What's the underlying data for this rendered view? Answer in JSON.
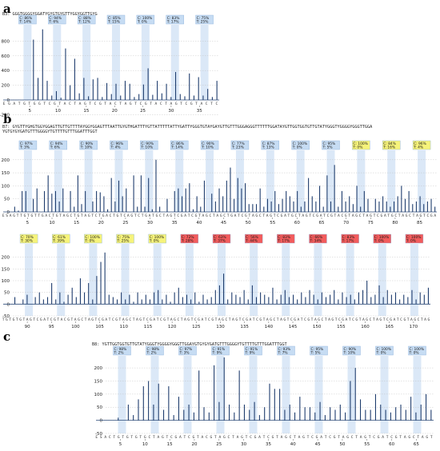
{
  "letters": {
    "a": "a",
    "b": "b",
    "c": "c"
  },
  "chart_data": [
    {
      "type": "bar",
      "panel": "a",
      "header": "B3: GGGTGGGGYGGATYGYGTGYGTTYGGYGGTTGYG",
      "ylim": [
        0,
        1000
      ],
      "yticks": [
        "800",
        "600",
        "400",
        "200",
        "0",
        "-200"
      ],
      "ytick_values": [
        800,
        600,
        400,
        200,
        0,
        -200
      ],
      "xticks": [
        "5",
        "10",
        "15",
        "20",
        "25",
        "30",
        "35"
      ],
      "bases": "EGATGTGGTCGTACTAGTCGTACTAGTCGTACTAGTCGTACTC",
      "cpg_sites": [
        6,
        9,
        15,
        18,
        21,
        24,
        27,
        30,
        33
      ],
      "badges": [
        {
          "c": "C: 86%",
          "t": "T: 14%"
        },
        {
          "c": "C: 94%",
          "t": "T: 6%"
        },
        {
          "c": "C: 88%",
          "t": "T: 12%"
        },
        {
          "c": "C: 85%",
          "t": "T: 15%"
        },
        {
          "c": "C: 100%",
          "t": "T: 0%"
        },
        {
          "c": "C: 83%",
          "t": "T: 17%"
        },
        {
          "c": "C: 75%",
          "t": "T: 25%"
        }
      ],
      "values": [
        0,
        0,
        0,
        0,
        820,
        300,
        960,
        260,
        60,
        120,
        30,
        700,
        200,
        560,
        90,
        300,
        50,
        280,
        300,
        40,
        230,
        80,
        220,
        60,
        260,
        220,
        40,
        80,
        210,
        430,
        70,
        260,
        90,
        220,
        40,
        380,
        80,
        50,
        360,
        60,
        310,
        60,
        150,
        40,
        260
      ]
    },
    {
      "type": "bar",
      "panel": "b",
      "header": "B7: GYGTTYGHGTGGYGGAGTTGTTGTTTTAYGGYGGAGTTTAATTGYGTHGATTTYGTTATTTTTATTYGATTYGGGTGTAYGAYGTTGTTTGGGAGGGTTTTTTGGATAYGTTGGTGGTGTTGTATYGGGTYGGGGYGGGTTGGA YGTGYGYGATGTTTGGGGYTGTTTTGTTTGGATTTGGT",
      "header_line2": "YGTGYGYGATGTTTGGGGYTGTTTTGTTTGGATTTGGT",
      "rows": [
        {
          "ylim": [
            0,
            230
          ],
          "yticks": [
            "200",
            "150",
            "100",
            "50",
            "0"
          ],
          "ytick_values": [
            200,
            150,
            100,
            50,
            0
          ],
          "xticks": [
            "5",
            "10",
            "15",
            "20",
            "25",
            "30",
            "35",
            "40",
            "45",
            "50",
            "55",
            "60",
            "65",
            "70",
            "75",
            "80",
            "85"
          ],
          "bases": "ESAGTTGTGTTGACTGTAGCTGTAGTCTGACTGTCAGTCTGATGCTAGTCGATCGTAGCTAGCTGATCGTAGCTAGTCGATGCTAGTCGATCGTACGTAGCTAGTCGATGCTAGCTAGTCGA",
          "badges": [
            {
              "c": "C: 97%",
              "t": "T: 3%",
              "color": "blue"
            },
            {
              "c": "C: 94%",
              "t": "T: 6%",
              "color": "blue"
            },
            {
              "c": "C: 90%",
              "t": "T: 10%",
              "color": "blue"
            },
            {
              "c": "C: 96%",
              "t": "T: 4%",
              "color": "blue"
            },
            {
              "c": "C: 90%",
              "t": "T: 10%",
              "color": "blue"
            },
            {
              "c": "C: 86%",
              "t": "T: 14%",
              "color": "blue"
            },
            {
              "c": "C: 90%",
              "t": "T: 10%",
              "color": "blue"
            },
            {
              "c": "C: 77%",
              "t": "T: 23%",
              "color": "blue"
            },
            {
              "c": "C: 87%",
              "t": "T: 13%",
              "color": "blue"
            },
            {
              "c": "C: 100%",
              "t": "T: 0%",
              "color": "blue"
            },
            {
              "c": "C: 95%",
              "t": "T: 5%",
              "color": "blue"
            },
            {
              "c": "C: 100%",
              "t": "T: 0%",
              "color": "yellow"
            },
            {
              "c": "C: 84%",
              "t": "T: 16%",
              "color": "yellow"
            },
            {
              "c": "C: 96%",
              "t": "T: 4%",
              "color": "yellow"
            }
          ],
          "values": [
            20,
            5,
            80,
            80,
            0,
            50,
            90,
            0,
            80,
            140,
            70,
            80,
            40,
            90,
            0,
            80,
            20,
            140,
            30,
            80,
            0,
            40,
            80,
            75,
            60,
            10,
            130,
            40,
            120,
            60,
            90,
            0,
            140,
            20,
            140,
            20,
            130,
            10,
            200,
            20,
            0,
            50,
            0,
            80,
            90,
            60,
            90,
            110,
            10,
            60,
            20,
            120,
            0,
            70,
            40,
            90,
            60,
            120,
            170,
            50,
            130,
            90,
            110,
            30,
            30,
            30,
            90,
            20,
            50,
            40,
            80,
            30,
            50,
            80,
            60,
            40,
            80,
            20,
            40,
            130,
            60,
            40,
            100,
            20,
            140,
            40,
            180,
            20,
            80,
            40,
            60,
            30,
            100,
            20,
            80,
            50,
            0,
            50,
            40,
            60,
            40,
            20,
            40,
            60,
            100,
            50,
            80,
            30,
            40,
            60,
            30,
            40,
            50,
            20
          ]
        },
        {
          "ylim": [
            -50,
            250
          ],
          "yticks": [
            "200",
            "150",
            "100",
            "50",
            "0",
            "-50"
          ],
          "ytick_values": [
            200,
            150,
            100,
            50,
            0,
            -50
          ],
          "xticks": [
            "90",
            "95",
            "100",
            "105",
            "110",
            "115",
            "120",
            "125",
            "130",
            "135",
            "140",
            "145",
            "150",
            "155",
            "160",
            "165",
            "170"
          ],
          "bases": "TGTGTGTAGTCGATCGTACGTAGCTAGTCGATCGTAGCTAGTCGATCGTAGCTAGTCGATCGTAGCTAGTCGATCGTAGCTAGTCGATCGTAGCTAGTCGATCGTAGCTAGTCGATCGTAGCTAG",
          "badges": [
            {
              "c": "C: 70%",
              "t": "T: 30%",
              "color": "yellow"
            },
            {
              "c": "C: 61%",
              "t": "T: 39%",
              "color": "yellow"
            },
            {
              "c": "C: 100%",
              "t": "T: 0%",
              "color": "yellow"
            },
            {
              "c": "C: 75%",
              "t": "T: 25%",
              "color": "yellow"
            },
            {
              "c": "C: 100%",
              "t": "T: 0%",
              "color": "yellow"
            },
            {
              "c": "C: 72%",
              "t": "T: 28%",
              "color": "red"
            },
            {
              "c": "C: 63%",
              "t": "T: 37%",
              "color": "red"
            },
            {
              "c": "C: 56%",
              "t": "T: 44%",
              "color": "red"
            },
            {
              "c": "C: 83%",
              "t": "T: 17%",
              "color": "red"
            },
            {
              "c": "C: 66%",
              "t": "T: 34%",
              "color": "red"
            },
            {
              "c": "C: 83%",
              "t": "T: 17%",
              "color": "red"
            },
            {
              "c": "C: 100%",
              "t": "T: 0%",
              "color": "red"
            },
            {
              "c": "C: 100%",
              "t": "T: 0%",
              "color": "red"
            }
          ],
          "values": [
            30,
            0,
            20,
            40,
            0,
            30,
            50,
            20,
            30,
            90,
            20,
            50,
            10,
            40,
            70,
            30,
            110,
            50,
            90,
            20,
            120,
            180,
            220,
            40,
            30,
            20,
            50,
            20,
            40,
            10,
            50,
            20,
            40,
            20,
            50,
            60,
            20,
            40,
            10,
            50,
            70,
            30,
            40,
            20,
            50,
            10,
            40,
            20,
            30,
            60,
            80,
            130,
            20,
            50,
            40,
            30,
            60,
            20,
            80,
            30,
            50,
            40,
            30,
            70,
            20,
            40,
            60,
            30,
            40,
            20,
            50,
            30,
            60,
            40,
            20,
            50,
            30,
            40,
            60,
            20,
            50,
            30,
            40,
            20,
            50,
            60,
            100,
            30,
            40,
            80,
            30,
            60,
            40,
            50,
            20,
            40,
            30,
            60,
            20,
            50,
            40,
            70
          ]
        }
      ]
    },
    {
      "type": "bar",
      "panel": "c",
      "header": "B8: YGTTGGTGGTGTTGTATYGGGTYGGGGYGGGTTGGAYGTGYGYGATGTTTGGGGYTGTTTTGTTTGGATTTGGT",
      "ylim": [
        -50,
        240
      ],
      "yticks": [
        "200",
        "150",
        "100",
        "50",
        "0",
        "-50"
      ],
      "ytick_values": [
        200,
        150,
        100,
        50,
        0,
        -50
      ],
      "xticks": [
        "5",
        "10",
        "15",
        "20",
        "25",
        "30",
        "35",
        "40",
        "45",
        "50",
        "55",
        "60",
        "65"
      ],
      "bases": "ESACTGTGTGTGCTAGTCGATCGTACGTAGCTAGTCGATCGTAGCTAGTCGATCGTAGCTAGTCGATCGTAGCTAGT",
      "badges": [
        {
          "c": "C: 98%",
          "t": "T: 2%"
        },
        {
          "c": "C: 98%",
          "t": "T: 2%"
        },
        {
          "c": "C: 97%",
          "t": "T: 3%"
        },
        {
          "c": "C: 91%",
          "t": "T: 9%"
        },
        {
          "c": "C: 91%",
          "t": "T: 9%"
        },
        {
          "c": "C: 93%",
          "t": "T: 7%"
        },
        {
          "c": "C: 95%",
          "t": "T: 5%"
        },
        {
          "c": "C: 90%",
          "t": "T: 10%"
        },
        {
          "c": "C: 100%",
          "t": "T: 0%"
        },
        {
          "c": "C: 100%",
          "t": "T: 0%"
        }
      ],
      "values": [
        0,
        0,
        10,
        0,
        60,
        20,
        80,
        130,
        150,
        60,
        140,
        40,
        130,
        20,
        90,
        40,
        60,
        30,
        190,
        50,
        30,
        210,
        70,
        240,
        60,
        30,
        190,
        60,
        40,
        70,
        20,
        50,
        140,
        120,
        120,
        40,
        60,
        30,
        90,
        50,
        50,
        30,
        70,
        20,
        50,
        40,
        60,
        30,
        150,
        200,
        80,
        40,
        40,
        100,
        60,
        40,
        30,
        50,
        60,
        40,
        90,
        30,
        60,
        100,
        40
      ]
    }
  ]
}
